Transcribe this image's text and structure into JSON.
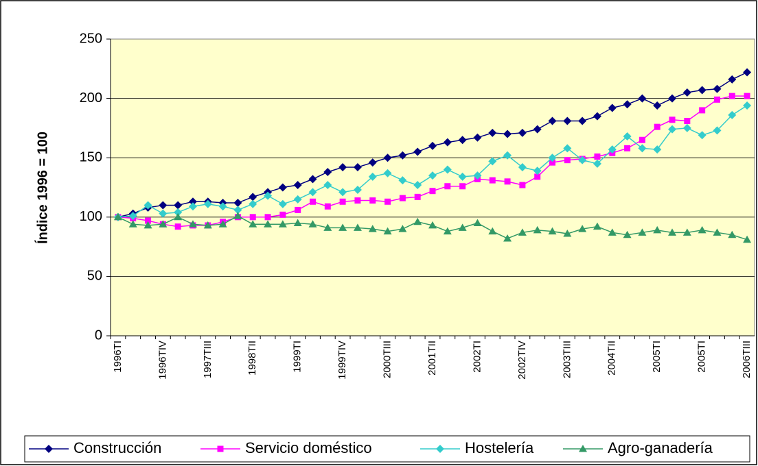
{
  "chart_data": {
    "type": "line",
    "y_label": "Índice 1996 = 100",
    "categories": [
      "1996TI",
      null,
      null,
      "1996TIV",
      null,
      null,
      "1997TIII",
      null,
      null,
      "1998TII",
      null,
      null,
      "1999TI",
      null,
      null,
      "1999TIV",
      null,
      null,
      "2000TIII",
      null,
      null,
      "2001TII",
      null,
      null,
      "2002TI",
      null,
      null,
      "2002TIV",
      null,
      null,
      "2003TIII",
      null,
      null,
      "2004TII",
      null,
      null,
      "2005TI",
      null,
      null,
      "2005TI",
      null,
      null,
      "2006TIII"
    ],
    "series": [
      {
        "name": "Construcción",
        "color": "#000080",
        "marker": "diamond",
        "values": [
          100,
          103,
          108,
          110,
          110,
          113,
          113,
          112,
          112,
          117,
          121,
          125,
          127,
          132,
          138,
          142,
          142,
          146,
          150,
          152,
          155,
          160,
          163,
          165,
          167,
          171,
          170,
          171,
          174,
          181,
          181,
          181,
          185,
          192,
          195,
          200,
          194,
          200,
          205,
          207,
          208,
          216,
          222
        ]
      },
      {
        "name": "Servicio doméstico",
        "color": "#ff00ff",
        "marker": "square",
        "values": [
          100,
          99,
          97,
          94,
          92,
          93,
          93,
          96,
          100,
          100,
          100,
          102,
          106,
          113,
          109,
          113,
          114,
          114,
          113,
          116,
          117,
          122,
          126,
          126,
          132,
          131,
          130,
          127,
          134,
          146,
          148,
          149,
          151,
          154,
          158,
          165,
          176,
          182,
          181,
          190,
          199,
          202,
          202
        ]
      },
      {
        "name": "Hostelería",
        "color": "#33cccc",
        "marker": "diamond",
        "values": [
          100,
          101,
          110,
          103,
          104,
          109,
          111,
          109,
          106,
          111,
          118,
          111,
          115,
          121,
          127,
          121,
          123,
          134,
          137,
          131,
          127,
          135,
          140,
          134,
          135,
          147,
          152,
          142,
          139,
          150,
          158,
          148,
          145,
          157,
          168,
          158,
          157,
          174,
          175,
          169,
          173,
          186,
          194
        ]
      },
      {
        "name": "Agro-ganadería",
        "color": "#339966",
        "marker": "triangle",
        "values": [
          100,
          94,
          93,
          94,
          100,
          94,
          93,
          94,
          101,
          94,
          94,
          94,
          95,
          94,
          91,
          91,
          91,
          90,
          88,
          90,
          96,
          93,
          88,
          91,
          95,
          88,
          82,
          87,
          89,
          88,
          86,
          90,
          92,
          87,
          85,
          87,
          89,
          87,
          87,
          89,
          87,
          85,
          81
        ]
      }
    ],
    "ylim": [
      0,
      250
    ],
    "yticks": [
      0,
      50,
      100,
      150,
      200,
      250
    ],
    "grid": true,
    "legend": "bottom"
  }
}
